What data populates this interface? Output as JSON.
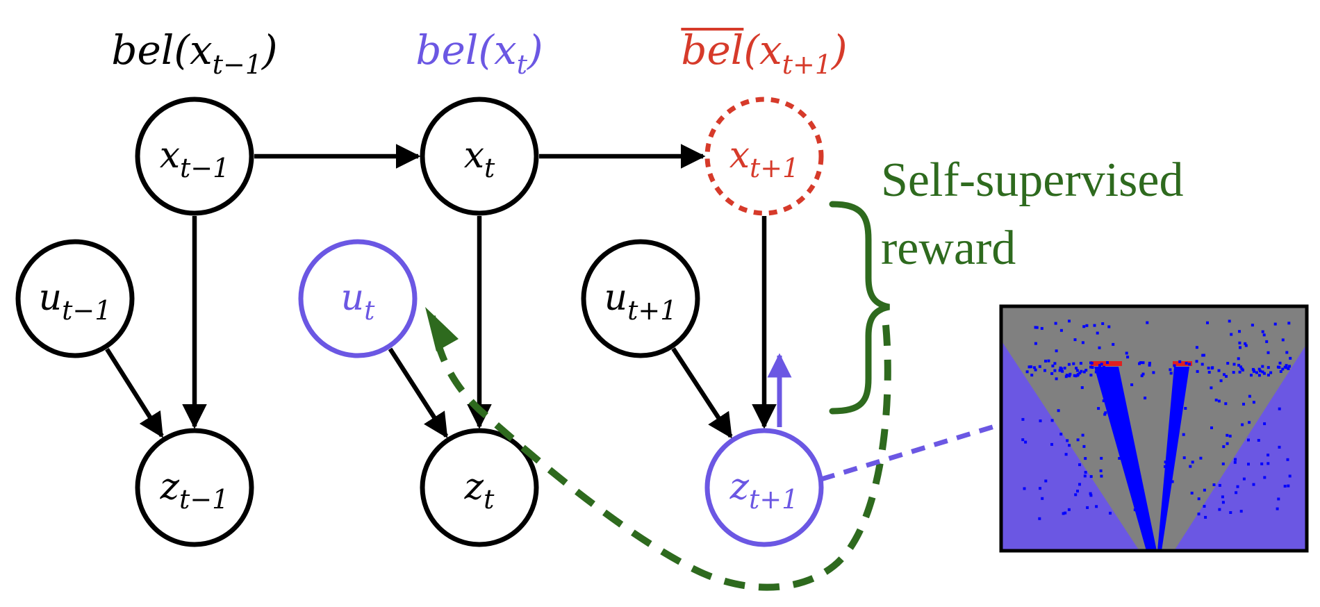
{
  "colors": {
    "black": "#000000",
    "purple": "#6b57e3",
    "red": "#d63a2a",
    "green": "#2e6a1e",
    "inset_gray": "#808080",
    "inset_blue": "#0000ff",
    "inset_purple": "#6b57e3",
    "inset_red": "#e02020"
  },
  "belief_labels": [
    {
      "id": "bel-prev",
      "fn": "bel",
      "var": "x",
      "sub": "t−1",
      "color": "black",
      "overline": false
    },
    {
      "id": "bel-curr",
      "fn": "bel",
      "var": "x",
      "sub": "t",
      "color": "purple",
      "overline": false
    },
    {
      "id": "bel-next",
      "fn": "bel",
      "var": "x",
      "sub": "t+1",
      "color": "red",
      "overline": true
    }
  ],
  "nodes": [
    {
      "id": "x_prev",
      "var": "x",
      "sub": "t−1",
      "color": "black",
      "style": "solid"
    },
    {
      "id": "x_curr",
      "var": "x",
      "sub": "t",
      "color": "black",
      "style": "solid"
    },
    {
      "id": "x_next",
      "var": "x",
      "sub": "t+1",
      "color": "red",
      "style": "dotted"
    },
    {
      "id": "u_prev",
      "var": "u",
      "sub": "t−1",
      "color": "black",
      "style": "solid"
    },
    {
      "id": "u_curr",
      "var": "u",
      "sub": "t",
      "color": "purple",
      "style": "solid"
    },
    {
      "id": "u_next",
      "var": "u",
      "sub": "t+1",
      "color": "black",
      "style": "solid"
    },
    {
      "id": "z_prev",
      "var": "z",
      "sub": "t−1",
      "color": "black",
      "style": "solid"
    },
    {
      "id": "z_curr",
      "var": "z",
      "sub": "t",
      "color": "black",
      "style": "solid"
    },
    {
      "id": "z_next",
      "var": "z",
      "sub": "t+1",
      "color": "purple",
      "style": "solid"
    }
  ],
  "edges": [
    {
      "from": "x_prev",
      "to": "x_curr"
    },
    {
      "from": "x_curr",
      "to": "x_next"
    },
    {
      "from": "x_prev",
      "to": "z_prev"
    },
    {
      "from": "u_prev",
      "to": "z_prev"
    },
    {
      "from": "x_curr",
      "to": "z_curr"
    },
    {
      "from": "u_curr",
      "to": "z_curr"
    },
    {
      "from": "x_next",
      "to": "z_next"
    },
    {
      "from": "u_next",
      "to": "z_next"
    }
  ],
  "reward_label": {
    "line1": "Self-supervised",
    "line2": "reward"
  },
  "inset": {
    "description_icon": "lidar-scan-image"
  }
}
